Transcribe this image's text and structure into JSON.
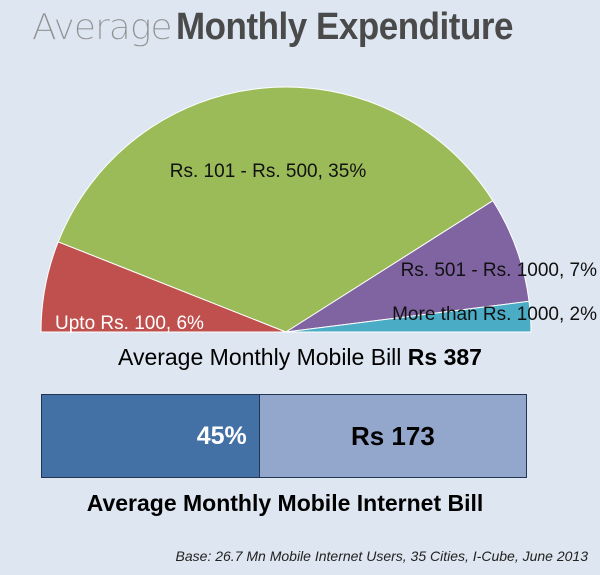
{
  "title": {
    "light": "Average",
    "bold": "Monthly Expenditure"
  },
  "chart_data": {
    "type": "pie",
    "layout": "semicircle",
    "slices": [
      {
        "label": "Upto Rs. 100, 6%",
        "value": 6,
        "color": "#c0504d"
      },
      {
        "label": "Rs. 101 - Rs. 500, 35%",
        "value": 35,
        "color": "#9bbb59"
      },
      {
        "label": "Rs. 501 - Rs. 1000, 7%",
        "value": 7,
        "color": "#8064a2"
      },
      {
        "label": "More than Rs. 1000, 2%",
        "value": 2,
        "color": "#4bacc6"
      }
    ]
  },
  "mobile_bill": {
    "label": "Average Monthly Mobile Bill ",
    "value": "Rs 387"
  },
  "internet_bar": {
    "fraction": 0.45,
    "percent_label": "45%",
    "amount_label": "Rs 173",
    "fill_color": "#4471a5",
    "rest_color": "#93a7cc"
  },
  "internet_bill": {
    "label": "Average Monthly Mobile Internet Bill"
  },
  "source": "Base: 26.7 Mn Mobile Internet Users, 35 Cities, I-Cube, June 2013"
}
